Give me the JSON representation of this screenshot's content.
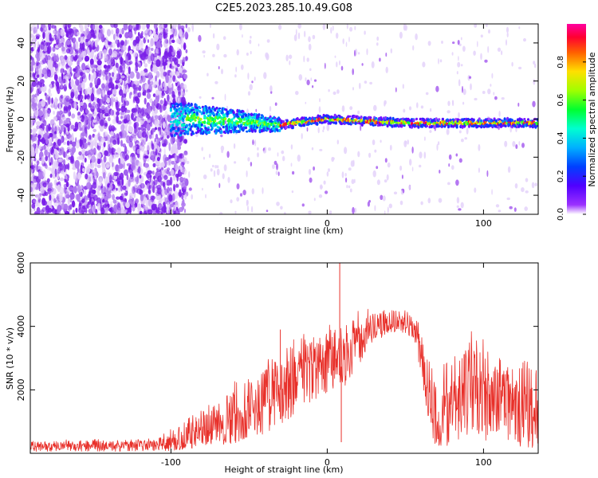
{
  "figure_title": "C2E5.2023.285.10.49.G08",
  "colors": {
    "snr_line": "#e8302a",
    "low_amp": "#8a2be2",
    "frame": "#000000"
  },
  "chart_data": [
    {
      "type": "heatmap",
      "title": "C2E5.2023.285.10.49.G08",
      "xlabel": "Height of straight line (km)",
      "ylabel": "Frequency (Hz)",
      "xlim": [
        -190,
        135
      ],
      "ylim": [
        -50,
        50
      ],
      "xticks": [
        -100,
        0,
        100
      ],
      "yticks": [
        -40,
        -20,
        0,
        20,
        40
      ],
      "xtick_labels": [
        "-100",
        "0",
        "100"
      ],
      "ytick_labels": [
        "-40",
        "-20",
        "0",
        "20",
        "40"
      ],
      "colorbar": {
        "label": "Normalized spectral amplitude",
        "range": [
          0,
          1
        ],
        "ticks": [
          "0.0",
          "0.2",
          "0.4",
          "0.6",
          "0.8"
        ],
        "colormap": "rainbow (violet at 0 to magenta at 1)"
      },
      "features": {
        "noise_region_x": [
          -190,
          -95
        ],
        "signal_emergence_x": -100,
        "signal_frequency_at_height": [
          {
            "x": -90,
            "freq": 0
          },
          {
            "x": -60,
            "freq": -1
          },
          {
            "x": -30,
            "freq": -3
          },
          {
            "x": 0,
            "freq": 0
          },
          {
            "x": 50,
            "freq": -2
          },
          {
            "x": 100,
            "freq": -2
          },
          {
            "x": 130,
            "freq": -2
          }
        ]
      },
      "grid": false
    },
    {
      "type": "line",
      "xlabel": "Height of straight line (km)",
      "ylabel": "SNR (10 * v/v)",
      "xlim": [
        -190,
        135
      ],
      "ylim": [
        0,
        6000
      ],
      "xticks": [
        -100,
        0,
        100
      ],
      "yticks": [
        2000,
        4000,
        6000
      ],
      "xtick_labels": [
        "-100",
        "0",
        "100"
      ],
      "ytick_labels": [
        "2000",
        "4000",
        "6000"
      ],
      "series": [
        {
          "x": [
            -190,
            -160,
            -130,
            -110,
            -100,
            -90,
            -80,
            -70,
            -60,
            -50,
            -40,
            -30,
            -20,
            -10,
            0,
            10,
            20,
            30,
            40,
            50,
            55,
            60,
            65,
            70,
            80,
            90,
            100,
            110,
            120,
            130,
            135
          ],
          "y": [
            200,
            250,
            230,
            250,
            300,
            450,
            600,
            800,
            1000,
            1300,
            1600,
            2000,
            2300,
            2800,
            3000,
            2700,
            3500,
            3900,
            4100,
            4100,
            4000,
            3000,
            2000,
            1000,
            1500,
            2500,
            1800,
            2000,
            1700,
            1400,
            1100
          ],
          "envelope_high": [
            350,
            400,
            380,
            420,
            700,
            1000,
            1300,
            1600,
            2000,
            2400,
            2700,
            3000,
            3400,
            3500,
            3900,
            4000,
            4300,
            4450,
            4500,
            4500,
            4300,
            3800,
            3000,
            2800,
            3000,
            3500,
            3200,
            3000,
            2800,
            2600,
            2300
          ],
          "envelope_low": [
            60,
            60,
            60,
            80,
            80,
            120,
            200,
            250,
            300,
            450,
            600,
            900,
            1200,
            1600,
            1900,
            2000,
            2700,
            3500,
            3800,
            3800,
            3600,
            2400,
            900,
            100,
            200,
            600,
            300,
            700,
            200,
            100,
            100
          ],
          "spikes": [
            {
              "x": 8,
              "y": 6000
            },
            {
              "x": -30,
              "y": 3900
            },
            {
              "x": -10,
              "y": 3500
            },
            {
              "x": 9,
              "y": 350
            }
          ]
        }
      ],
      "grid": false
    }
  ]
}
